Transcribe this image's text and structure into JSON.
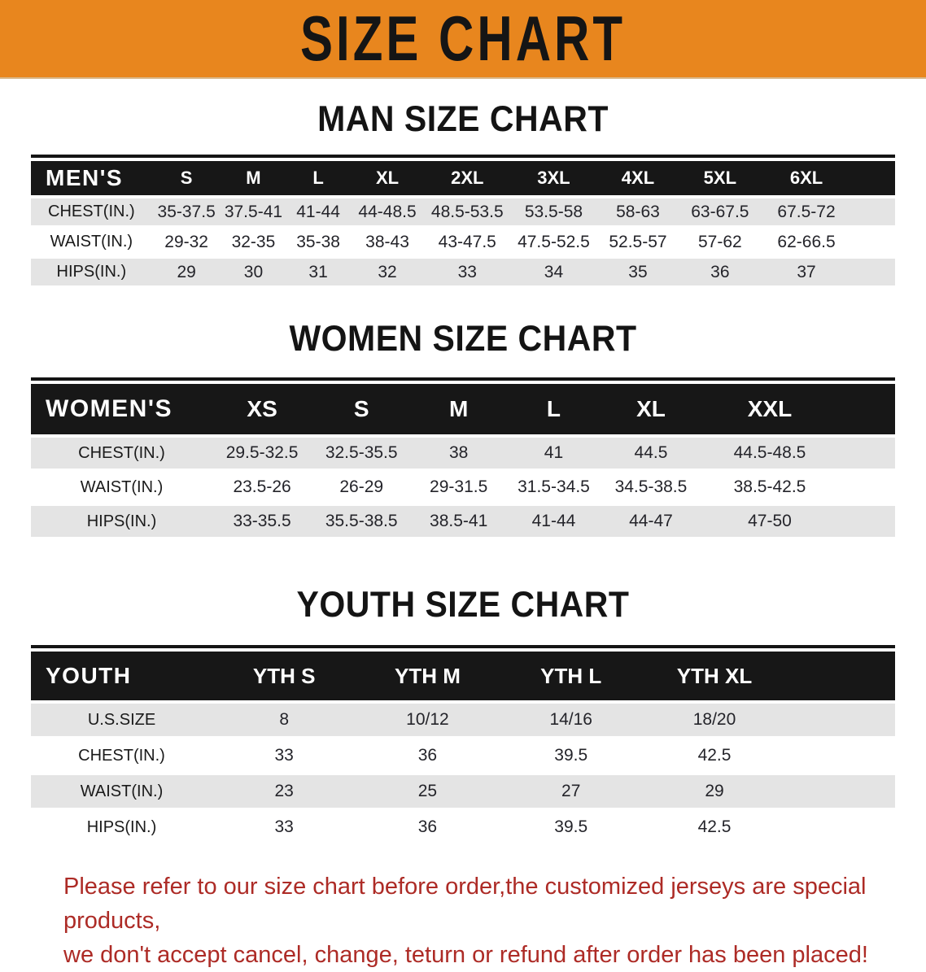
{
  "banner": {
    "title": "SIZE CHART"
  },
  "colors": {
    "banner_background": "#E8861E",
    "header_bar": "#171717",
    "row_stripe": "#E4E4E4",
    "disclaimer_text": "#AD2B26"
  },
  "sections": {
    "men": {
      "title": "MAN SIZE CHART",
      "header": [
        "MEN'S",
        "S",
        "M",
        "L",
        "XL",
        "2XL",
        "3XL",
        "4XL",
        "5XL",
        "6XL"
      ],
      "rows": [
        [
          "CHEST(IN.)",
          "35-37.5",
          "37.5-41",
          "41-44",
          "44-48.5",
          "48.5-53.5",
          "53.5-58",
          "58-63",
          "63-67.5",
          "67.5-72"
        ],
        [
          "WAIST(IN.)",
          "29-32",
          "32-35",
          "35-38",
          "38-43",
          "43-47.5",
          "47.5-52.5",
          "52.5-57",
          "57-62",
          "62-66.5"
        ],
        [
          "HIPS(IN.)",
          "29",
          "30",
          "31",
          "32",
          "33",
          "34",
          "35",
          "36",
          "37"
        ]
      ]
    },
    "women": {
      "title": "WOMEN SIZE CHART",
      "header": [
        "WOMEN'S",
        "XS",
        "S",
        "M",
        "L",
        "XL",
        "XXL"
      ],
      "rows": [
        [
          "CHEST(IN.)",
          "29.5-32.5",
          "32.5-35.5",
          "38",
          "41",
          "44.5",
          "44.5-48.5"
        ],
        [
          "WAIST(IN.)",
          "23.5-26",
          "26-29",
          "29-31.5",
          "31.5-34.5",
          "34.5-38.5",
          "38.5-42.5"
        ],
        [
          "HIPS(IN.)",
          "33-35.5",
          "35.5-38.5",
          "38.5-41",
          "41-44",
          "44-47",
          "47-50"
        ]
      ]
    },
    "youth": {
      "title": "YOUTH SIZE CHART",
      "header": [
        "YOUTH",
        "YTH S",
        "YTH M",
        "YTH L",
        "YTH XL"
      ],
      "rows": [
        [
          "U.S.SIZE",
          "8",
          "10/12",
          "14/16",
          "18/20"
        ],
        [
          "CHEST(IN.)",
          "33",
          "36",
          "39.5",
          "42.5"
        ],
        [
          "WAIST(IN.)",
          "23",
          "25",
          "27",
          "29"
        ],
        [
          "HIPS(IN.)",
          "33",
          "36",
          "39.5",
          "42.5"
        ]
      ]
    }
  },
  "disclaimer": {
    "line1": "Please refer to our size chart before order,the customized jerseys are special products,",
    "line2": "we don't accept cancel, change, teturn or refund after order has been placed!"
  }
}
